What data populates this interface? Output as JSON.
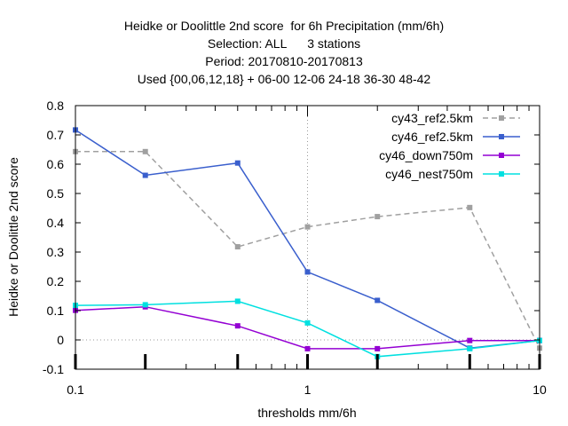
{
  "chart_data": {
    "type": "line",
    "title_lines": [
      "Heidke or Doolittle 2nd score  for 6h Precipitation (mm/6h)",
      "Selection: ALL      3 stations",
      "Period: 20170810-20170813",
      "Used {00,06,12,18} + 06-00 12-06 24-18 36-30 48-42"
    ],
    "xlabel": "thresholds mm/6h",
    "ylabel": "Heidke or Doolittle 2nd score",
    "xscale": "log",
    "xlim": [
      0.1,
      10
    ],
    "ylim": [
      -0.1,
      0.8
    ],
    "x_ticks": [
      0.1,
      1,
      10
    ],
    "x_tick_labels": [
      "0.1",
      "1",
      "10"
    ],
    "y_ticks": [
      -0.1,
      0,
      0.1,
      0.2,
      0.3,
      0.4,
      0.5,
      0.6,
      0.7,
      0.8
    ],
    "y_tick_labels": [
      "-0.1",
      "0",
      "0.1",
      "0.2",
      "0.3",
      "0.4",
      "0.5",
      "0.6",
      "0.7",
      "0.8"
    ],
    "grid": "dotted at x=1 and y=0",
    "legend_position": "top-right",
    "x": [
      0.1,
      0.2,
      0.5,
      1,
      2,
      5,
      10
    ],
    "series": [
      {
        "name": "cy43_ref2.5km",
        "color": "#a0a0a0",
        "dash": true,
        "values": [
          0.643,
          0.643,
          0.318,
          0.386,
          0.421,
          0.452,
          -0.028
        ]
      },
      {
        "name": "cy46_ref2.5km",
        "color": "#3a5fcd",
        "dash": false,
        "values": [
          0.717,
          0.562,
          0.604,
          0.232,
          0.135,
          -0.028,
          -0.002
        ]
      },
      {
        "name": "cy46_down750m",
        "color": "#9400d3",
        "dash": false,
        "values": [
          0.101,
          0.113,
          0.048,
          -0.03,
          -0.03,
          -0.002,
          -0.002
        ]
      },
      {
        "name": "cy46_nest750m",
        "color": "#00e0e0",
        "dash": false,
        "values": [
          0.118,
          0.12,
          0.132,
          0.058,
          -0.057,
          -0.03,
          -0.002
        ]
      }
    ]
  }
}
